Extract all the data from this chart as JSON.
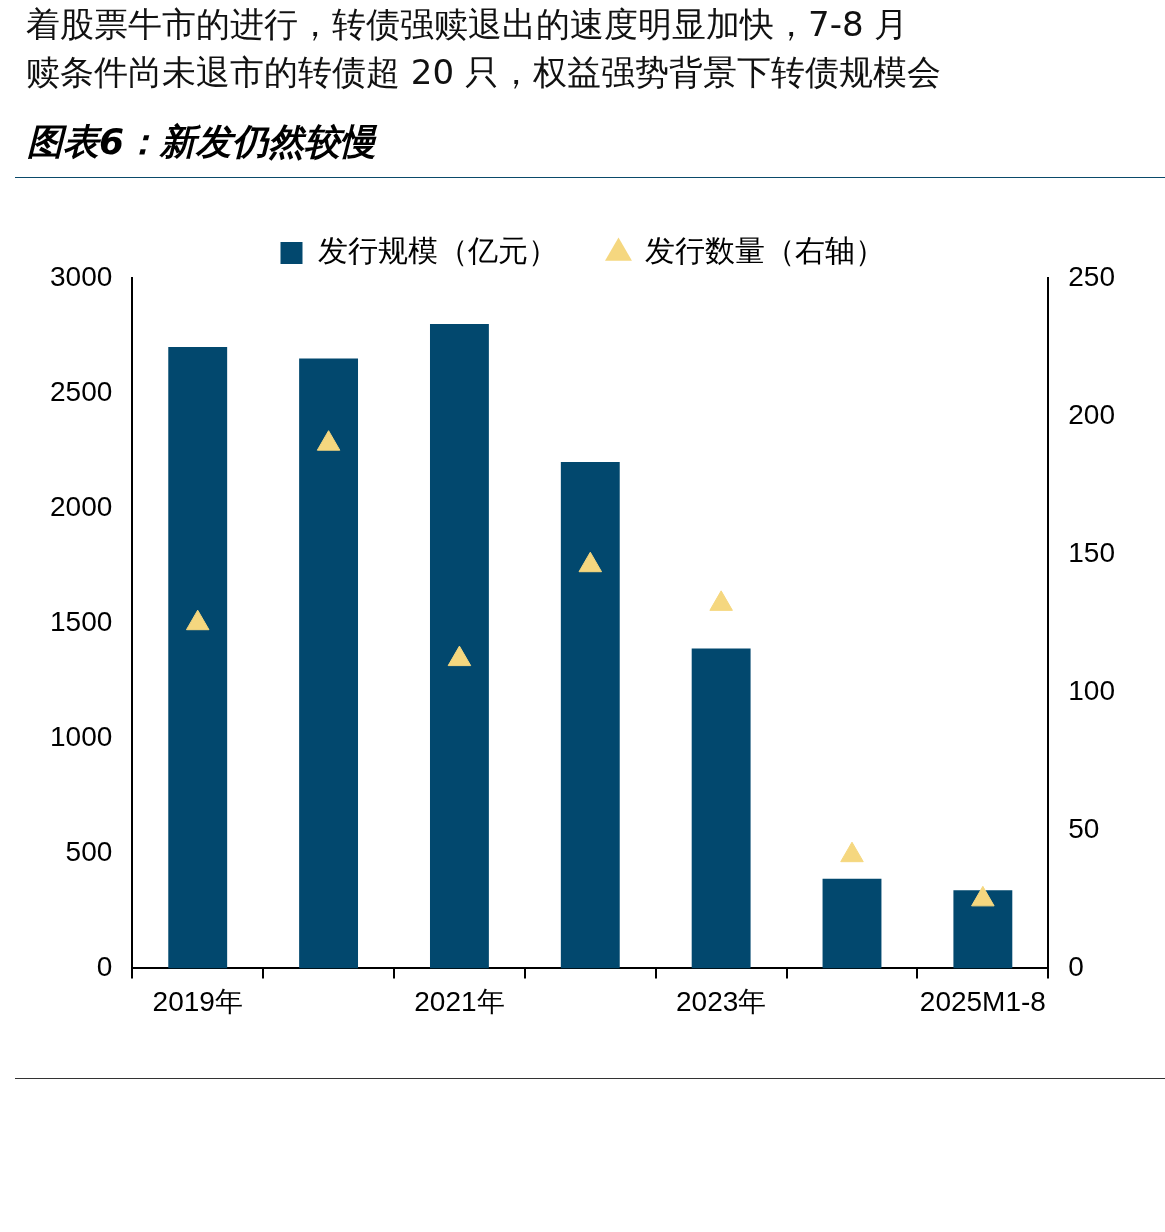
{
  "chart_data": {
    "type": "bar",
    "title": "图表6：新发仍然较慢",
    "annotations": [
      "着股票牛市的进行，转债强赎退出的速度明显加快，7-8 月",
      "赎条件尚未退市的转债超 20 只，权益强势背景下转债规模会"
    ],
    "categories": [
      "2019年",
      null,
      "2021年",
      null,
      "2023年",
      null,
      "2025M1-8"
    ],
    "series": [
      {
        "name": "发行规模（亿元）",
        "color": "#02486e",
        "values": [
          2700,
          2650,
          2800,
          2200,
          1390,
          390,
          340
        ]
      },
      {
        "name": "发行数量（右轴）",
        "type": "scatter",
        "axis": "y2",
        "marker": "triangle",
        "color": "#f5d77f",
        "values": [
          125,
          190,
          112,
          146,
          132,
          41,
          25
        ]
      }
    ],
    "ylim": [
      0,
      3000
    ],
    "yticks": [
      0,
      500,
      1000,
      1500,
      2000,
      2500,
      3000
    ],
    "y2lim": [
      0,
      250
    ],
    "y2ticks": [
      0,
      50,
      100,
      150,
      200,
      250
    ],
    "grid": false,
    "legend": "top"
  }
}
